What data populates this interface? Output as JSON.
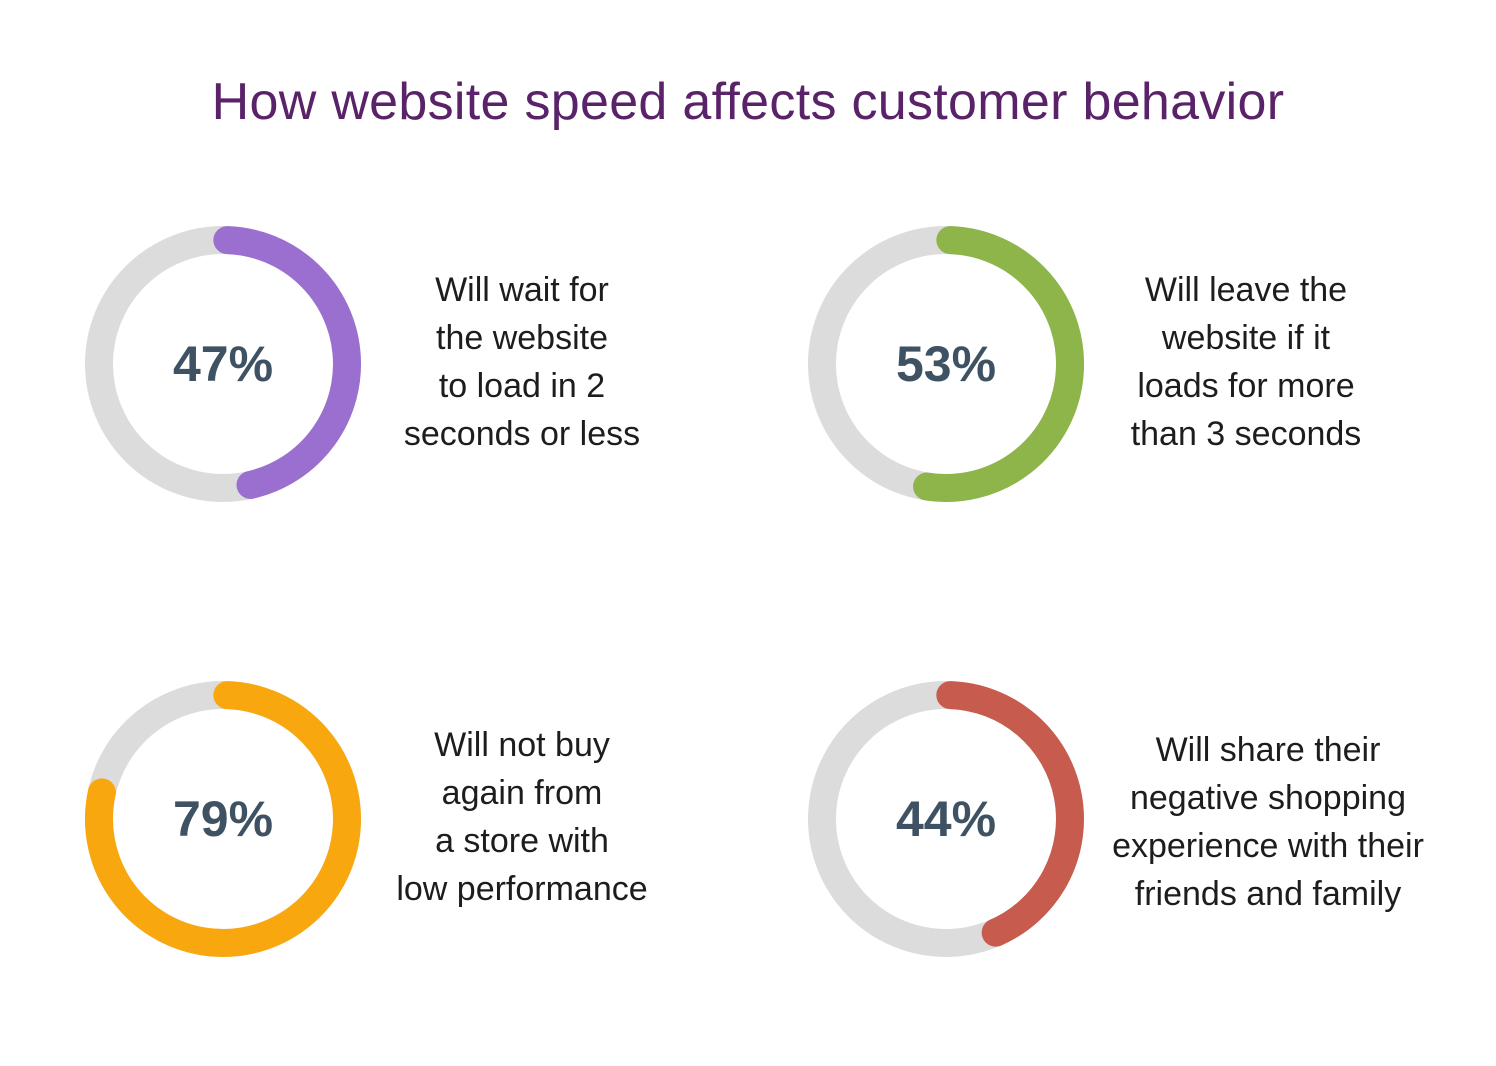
{
  "title": "How website speed affects customer behavior",
  "chart_data": {
    "type": "pie",
    "variant": "donut",
    "track_color": "#dcdcdc",
    "items": [
      {
        "value": 47,
        "label": "47%",
        "color": "#9b6fcf",
        "text": [
          "Will wait for",
          "the website",
          "to load in 2",
          "seconds or less"
        ]
      },
      {
        "value": 53,
        "label": "53%",
        "color": "#8db54a",
        "text": [
          "Will leave the",
          "website if it",
          "loads for more",
          "than 3 seconds"
        ]
      },
      {
        "value": 79,
        "label": "79%",
        "color": "#f9a70f",
        "text": [
          "Will not buy",
          "again from",
          "a store with",
          "low performance"
        ]
      },
      {
        "value": 44,
        "label": "44%",
        "color": "#c65b4e",
        "text": [
          "Will share their",
          "negative shopping",
          "experience with their",
          "friends and family"
        ]
      }
    ]
  }
}
